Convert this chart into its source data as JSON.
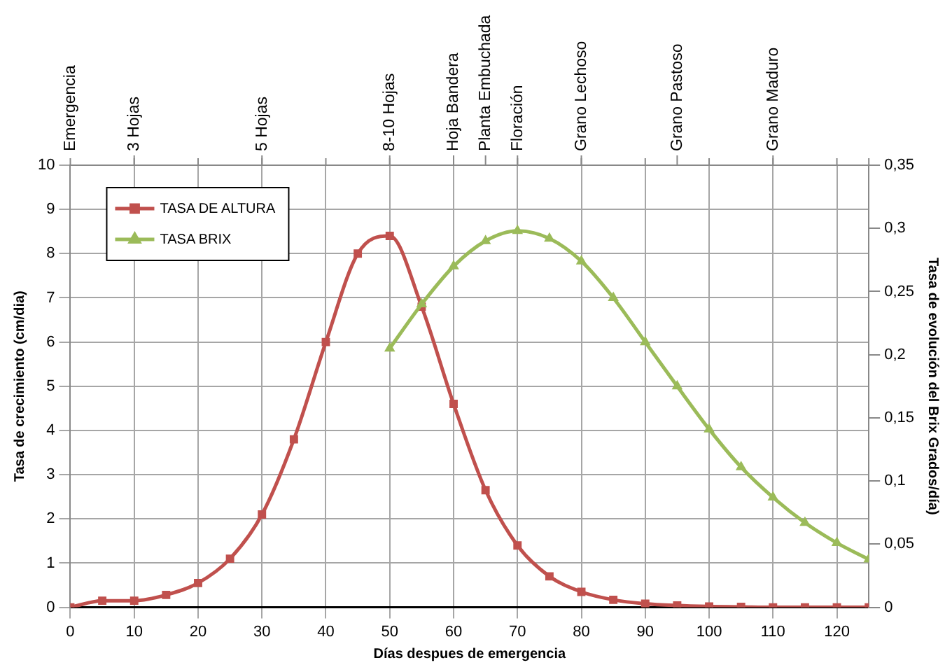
{
  "chart_data": {
    "type": "line",
    "xlabel": "Días despues de emergencia",
    "ylabel": "Tasa de crecimiento (cm/dia)",
    "y2label": "Tasa de evolución del Brix Grados/día)",
    "xlim": [
      0,
      125
    ],
    "xticks": [
      0,
      10,
      20,
      30,
      40,
      50,
      60,
      70,
      80,
      90,
      100,
      110,
      120
    ],
    "annotations": [
      "Emergencia"
    ],
    "ref_lines": [
      {
        "axis": "x",
        "value": 10,
        "label": "3 Hojas"
      },
      {
        "axis": "x",
        "value": 30,
        "label": "5 Hojas"
      },
      {
        "axis": "x",
        "value": 50,
        "label": "8-10 Hojas"
      },
      {
        "axis": "x",
        "value": 60,
        "label": "Hoja Bandera"
      },
      {
        "axis": "x",
        "value": 65,
        "label": "Planta Embuchada"
      },
      {
        "axis": "x",
        "value": 70,
        "label": "Floración"
      },
      {
        "axis": "x",
        "value": 80,
        "label": "Grano Lechoso"
      },
      {
        "axis": "x",
        "value": 95,
        "label": "Grano Pastoso"
      },
      {
        "axis": "x",
        "value": 110,
        "label": "Grano Maduro"
      }
    ],
    "ylim": [
      0,
      10
    ],
    "yticks": [
      0,
      1,
      2,
      3,
      4,
      5,
      6,
      7,
      8,
      9,
      10
    ],
    "y2lim": [
      0,
      0.35
    ],
    "y2ticks": [
      {
        "value": 0,
        "label": "0"
      },
      {
        "value": 0.05,
        "label": "0,05"
      },
      {
        "value": 0.1,
        "label": "0,1"
      },
      {
        "value": 0.15,
        "label": "0,15"
      },
      {
        "value": 0.2,
        "label": "0,2"
      },
      {
        "value": 0.25,
        "label": "0,25"
      },
      {
        "value": 0.3,
        "label": "0,3"
      },
      {
        "value": 0.35,
        "label": "0,35"
      }
    ],
    "grid": true,
    "legend": "top left",
    "series": [
      {
        "name": "TASA DE ALTURA",
        "color": "#c0504d",
        "marker": "square",
        "x": [
          0,
          5,
          10,
          15,
          20,
          25,
          30,
          35,
          40,
          45,
          50,
          55,
          60,
          65,
          70,
          75,
          80,
          85,
          90,
          95,
          100,
          105,
          110,
          115,
          120,
          125
        ],
        "values": [
          0,
          0.15,
          0.15,
          0.28,
          0.55,
          1.1,
          2.1,
          3.8,
          6.0,
          8.0,
          8.4,
          6.8,
          4.6,
          2.65,
          1.4,
          0.7,
          0.35,
          0.17,
          0.08,
          0.04,
          0.02,
          0.01,
          0,
          0,
          0,
          0
        ]
      },
      {
        "name": "TASA BRIX",
        "color": "#9bbb59",
        "marker": "triangle",
        "axis": "y2",
        "x": [
          50,
          55,
          60,
          65,
          70,
          75,
          80,
          85,
          90,
          95,
          100,
          105,
          110,
          115,
          120,
          125
        ],
        "values": [
          0.205,
          0.24,
          0.27,
          0.29,
          0.298,
          0.292,
          0.274,
          0.245,
          0.21,
          0.175,
          0.141,
          0.111,
          0.087,
          0.067,
          0.051,
          0.038
        ]
      }
    ]
  }
}
